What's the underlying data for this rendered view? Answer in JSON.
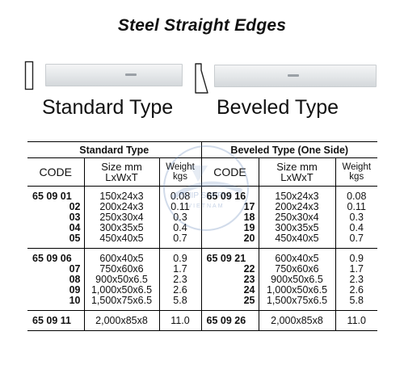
{
  "title": "Steel Straight Edges",
  "images": {
    "standard_label": "Standard Type",
    "beveled_label": "Beveled Type"
  },
  "watermark": {
    "line1": "SHIP SUPPLY",
    "line2": "VIETNAM"
  },
  "table": {
    "standard_header": "Standard Type",
    "beveled_header": "Beveled Type (One Side)",
    "col_code": "CODE",
    "col_size_1": "Size mm",
    "col_size_2": "LxWxT",
    "col_weight_1": "Weight",
    "col_weight_2": "kgs",
    "groups": [
      {
        "std_prefix": "65 09 01",
        "std_codes": [
          "02",
          "03",
          "04",
          "05"
        ],
        "std_sizes": [
          "150x24x3",
          "200x24x3",
          "250x30x4",
          "300x35x5",
          "450x40x5"
        ],
        "std_weights": [
          "0.08",
          "0.11",
          "0.3",
          "0.4",
          "0.7"
        ],
        "bev_prefix": "65 09 16",
        "bev_codes": [
          "17",
          "18",
          "19",
          "20"
        ],
        "bev_sizes": [
          "150x24x3",
          "200x24x3",
          "250x30x4",
          "300x35x5",
          "450x40x5"
        ],
        "bev_weights": [
          "0.08",
          "0.11",
          "0.3",
          "0.4",
          "0.7"
        ]
      },
      {
        "std_prefix": "65 09 06",
        "std_codes": [
          "07",
          "08",
          "09",
          "10"
        ],
        "std_sizes": [
          "600x40x5",
          "750x60x6",
          "900x50x6.5",
          "1,000x50x6.5",
          "1,500x75x6.5"
        ],
        "std_weights": [
          "0.9",
          "1.7",
          "2.3",
          "2.6",
          "5.8"
        ],
        "bev_prefix": "65 09 21",
        "bev_codes": [
          "22",
          "23",
          "24",
          "25"
        ],
        "bev_sizes": [
          "600x40x5",
          "750x60x6",
          "900x50x6.5",
          "1,000x50x6.5",
          "1,500x75x6.5"
        ],
        "bev_weights": [
          "0.9",
          "1.7",
          "2.3",
          "2.6",
          "5.8"
        ]
      },
      {
        "std_prefix": "65 09 11",
        "std_codes": [],
        "std_sizes": [
          "2,000x85x8"
        ],
        "std_weights": [
          "11.0"
        ],
        "bev_prefix": "65 09 26",
        "bev_codes": [],
        "bev_sizes": [
          "2,000x85x8"
        ],
        "bev_weights": [
          "11.0"
        ]
      }
    ]
  }
}
